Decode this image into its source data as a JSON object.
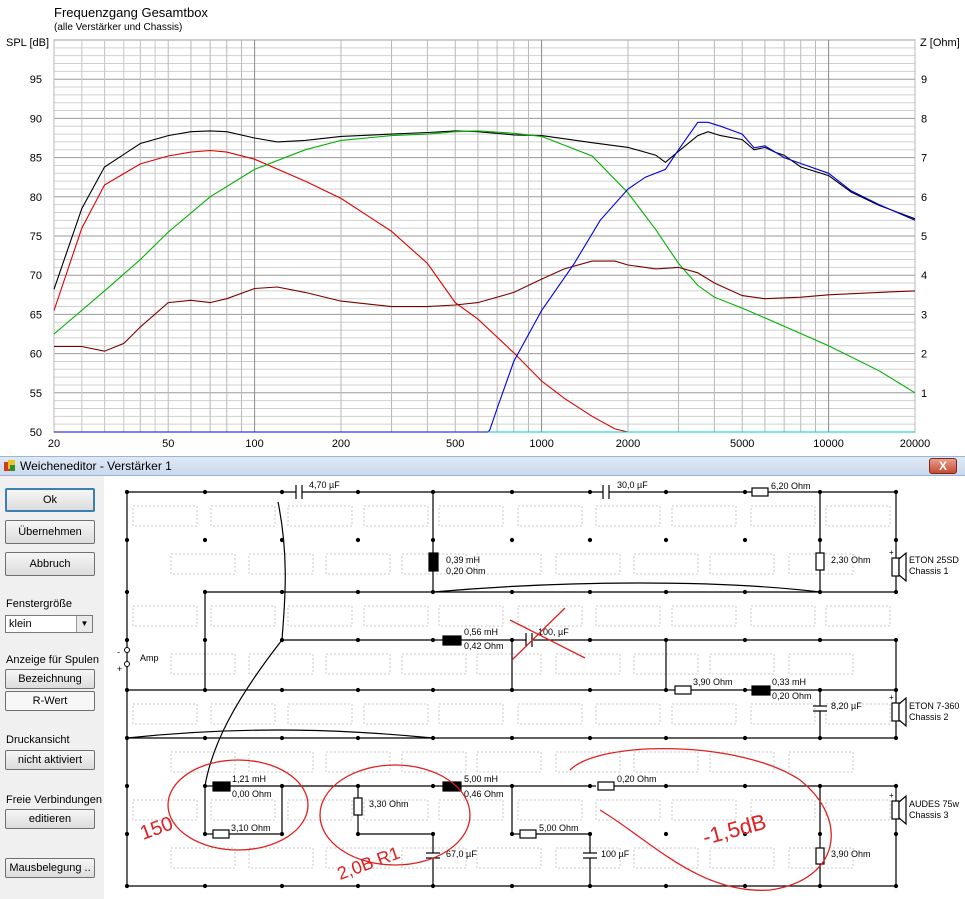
{
  "chart": {
    "title": "Frequenzgang Gesamtbox",
    "subtitle": "(alle Verstärker und Chassis)",
    "left_axis_label": "SPL [dB]",
    "right_axis_label": "Z [Ohm]"
  },
  "chart_data": {
    "type": "line",
    "title": "Frequenzgang Gesamtbox",
    "subtitle": "(alle Verstärker und Chassis)",
    "xlabel": "",
    "ylabel": "SPL [dB]",
    "y2label": "Z [Ohm]",
    "xscale": "log",
    "xlim": [
      20,
      20000
    ],
    "ylim": [
      50,
      100
    ],
    "y2lim": [
      0,
      10
    ],
    "grid": true,
    "x_tick_labels": [
      "20",
      "50",
      "100",
      "200",
      "500",
      "1000",
      "2000",
      "5000",
      "10000",
      "20000"
    ],
    "y_tick_labels": [
      "50",
      "55",
      "60",
      "65",
      "70",
      "75",
      "80",
      "85",
      "90",
      "95"
    ],
    "y2_tick_labels": [
      "1",
      "2",
      "3",
      "4",
      "5",
      "6",
      "7",
      "8",
      "9"
    ],
    "series": [
      {
        "color": "#000000",
        "axis": "left",
        "x": [
          20,
          25,
          30,
          40,
          50,
          60,
          70,
          80,
          100,
          120,
          150,
          200,
          300,
          400,
          500,
          600,
          800,
          1000,
          1500,
          2000,
          2500,
          2700,
          3000,
          3500,
          3800,
          4200,
          5000,
          5500,
          6000,
          6500,
          7000,
          8000,
          10000,
          12000,
          15000,
          20000
        ],
        "y": [
          68.2,
          78.5,
          83.8,
          86.8,
          87.8,
          88.3,
          88.4,
          88.3,
          87.5,
          87.0,
          87.2,
          87.7,
          88.0,
          88.2,
          88.4,
          88.3,
          87.9,
          87.8,
          86.9,
          86.3,
          85.3,
          84.4,
          85.8,
          87.8,
          88.3,
          87.8,
          87.3,
          86.0,
          86.3,
          85.7,
          85.3,
          83.8,
          82.7,
          80.6,
          78.9,
          77.2
        ]
      },
      {
        "color": "#e00000",
        "axis": "left",
        "x": [
          20,
          25,
          30,
          40,
          50,
          60,
          70,
          80,
          100,
          150,
          200,
          300,
          400,
          500,
          600,
          800,
          1000,
          1200,
          1500,
          1800,
          2000,
          20000
        ],
        "y": [
          65.5,
          76.0,
          81.5,
          84.2,
          85.2,
          85.7,
          85.9,
          85.7,
          84.8,
          82.0,
          79.8,
          75.6,
          71.5,
          66.5,
          64.4,
          60.1,
          56.5,
          54.3,
          52.0,
          50.4,
          50.0,
          50.0
        ]
      },
      {
        "color": "#00b000",
        "axis": "left",
        "x": [
          20,
          30,
          40,
          50,
          70,
          100,
          150,
          200,
          300,
          400,
          500,
          600,
          800,
          1000,
          1500,
          2000,
          2500,
          3000,
          3500,
          4000,
          5000,
          7000,
          10000,
          15000,
          20000
        ],
        "y": [
          62.5,
          68.0,
          72.0,
          75.5,
          80.0,
          83.5,
          86.0,
          87.2,
          87.8,
          88.0,
          88.3,
          88.4,
          88.1,
          87.7,
          85.2,
          80.5,
          75.8,
          71.5,
          68.7,
          67.2,
          65.8,
          63.5,
          61.0,
          57.8,
          55.0
        ]
      },
      {
        "color": "#7a0000",
        "axis": "left",
        "x": [
          20,
          25,
          30,
          35,
          40,
          50,
          60,
          70,
          80,
          100,
          120,
          150,
          200,
          300,
          400,
          500,
          600,
          800,
          1000,
          1200,
          1500,
          1800,
          2000,
          2500,
          3000,
          3500,
          4000,
          5000,
          6000,
          8000,
          10000,
          15000,
          20000
        ],
        "y": [
          60.9,
          60.9,
          60.3,
          61.3,
          63.4,
          66.5,
          66.8,
          66.5,
          67.0,
          68.3,
          68.5,
          67.8,
          66.7,
          66.0,
          66.0,
          66.2,
          66.5,
          67.8,
          69.5,
          70.8,
          71.8,
          71.8,
          71.3,
          70.8,
          71.0,
          70.3,
          69.0,
          67.4,
          67.0,
          67.2,
          67.5,
          67.8,
          68.0
        ]
      },
      {
        "color": "#0000e0",
        "axis": "right",
        "x": [
          20,
          650,
          660,
          700,
          800,
          1000,
          1300,
          1600,
          2000,
          2300,
          2700,
          3000,
          3500,
          3800,
          4200,
          5000,
          5500,
          6000,
          7000,
          8000,
          10000,
          12000,
          15000,
          20000
        ],
        "y": [
          0.0,
          0.0,
          0.05,
          0.6,
          1.8,
          3.1,
          4.3,
          5.4,
          6.2,
          6.5,
          6.7,
          7.2,
          7.9,
          7.9,
          7.8,
          7.6,
          7.25,
          7.3,
          7.0,
          6.85,
          6.6,
          6.15,
          5.8,
          5.4
        ]
      },
      {
        "color": "#00c8c8",
        "axis": "right",
        "x": [
          650,
          20000
        ],
        "y": [
          0.0,
          0.0
        ]
      }
    ]
  },
  "window": {
    "title": "Weicheneditor - Verstärker 1",
    "close_label": "X"
  },
  "left_panel": {
    "ok_label": "Ok",
    "apply_label": "Übernehmen",
    "cancel_label": "Abbruch",
    "window_size_label": "Fenstergröße",
    "window_size_value": "klein",
    "coil_display_label": "Anzeige für Spulen",
    "designation_label": "Bezeichnung",
    "r_value_label": "R-Wert",
    "print_view_label": "Druckansicht",
    "print_view_button": "nicht aktiviert",
    "free_connections_label": "Freie Verbindungen",
    "edit_button": "editieren",
    "mouse_button": "Mausbelegung .."
  },
  "schematic": {
    "amp_label": "Amp",
    "plus": "+",
    "minus": "-",
    "components": {
      "c1": "4,70 µF",
      "c2": "30,0 µF",
      "r_6_20": "6,20 Ohm",
      "l1_val": "0,39 mH",
      "l1_r": "0,20 Ohm",
      "r_2_30": "2,30 Ohm",
      "l2_val": "0,56 mH",
      "l2_r": "0,42 Ohm",
      "c3": "100, µF",
      "r_3_90a": "3,90 Ohm",
      "l3_val": "0,33 mH",
      "l3_r": "0,20 Ohm",
      "c4": "8,20 µF",
      "l4_val": "1,21 mH",
      "l4_r": "0,00 Ohm",
      "r_3_10": "3,10 Ohm",
      "r_3_30": "3,30 Ohm",
      "c5": "67,0 µF",
      "l5_val": "5,00 mH",
      "l5_r": "0,46 Ohm",
      "r_5_00": "5,00 Ohm",
      "c6": "100 µF",
      "r_0_20": "0,20 Ohm",
      "r_3_90b": "3,90 Ohm"
    },
    "chassis": [
      {
        "name": "ETON 25SD",
        "label": "Chassis 1"
      },
      {
        "name": "ETON 7-360",
        "label": "Chassis 2"
      },
      {
        "name": "AUDES 75w",
        "label": "Chassis 3"
      }
    ],
    "annotations": [
      "150",
      "2,0B R1",
      "-1,5dB"
    ]
  }
}
